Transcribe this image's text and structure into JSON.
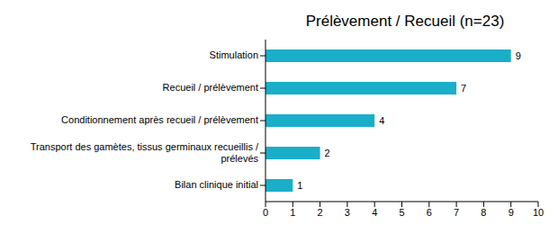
{
  "chart_data": {
    "type": "bar",
    "title": "Prélèvement / Recueil (n=23)",
    "orientation": "horizontal",
    "categories": [
      "Stimulation",
      "Recueil / prélèvement",
      "Conditionnement après recueil / prélèvement",
      "Transport des gamètes, tissus germinaux recueillis / prélevés",
      "Bilan clinique initial"
    ],
    "values": [
      9,
      7,
      4,
      2,
      1
    ],
    "color": "#1aaec8",
    "xlim": [
      0,
      10
    ],
    "xticks": [
      0,
      1,
      2,
      3,
      4,
      5,
      6,
      7,
      8,
      9,
      10
    ],
    "grid": false,
    "data_labels": true
  }
}
